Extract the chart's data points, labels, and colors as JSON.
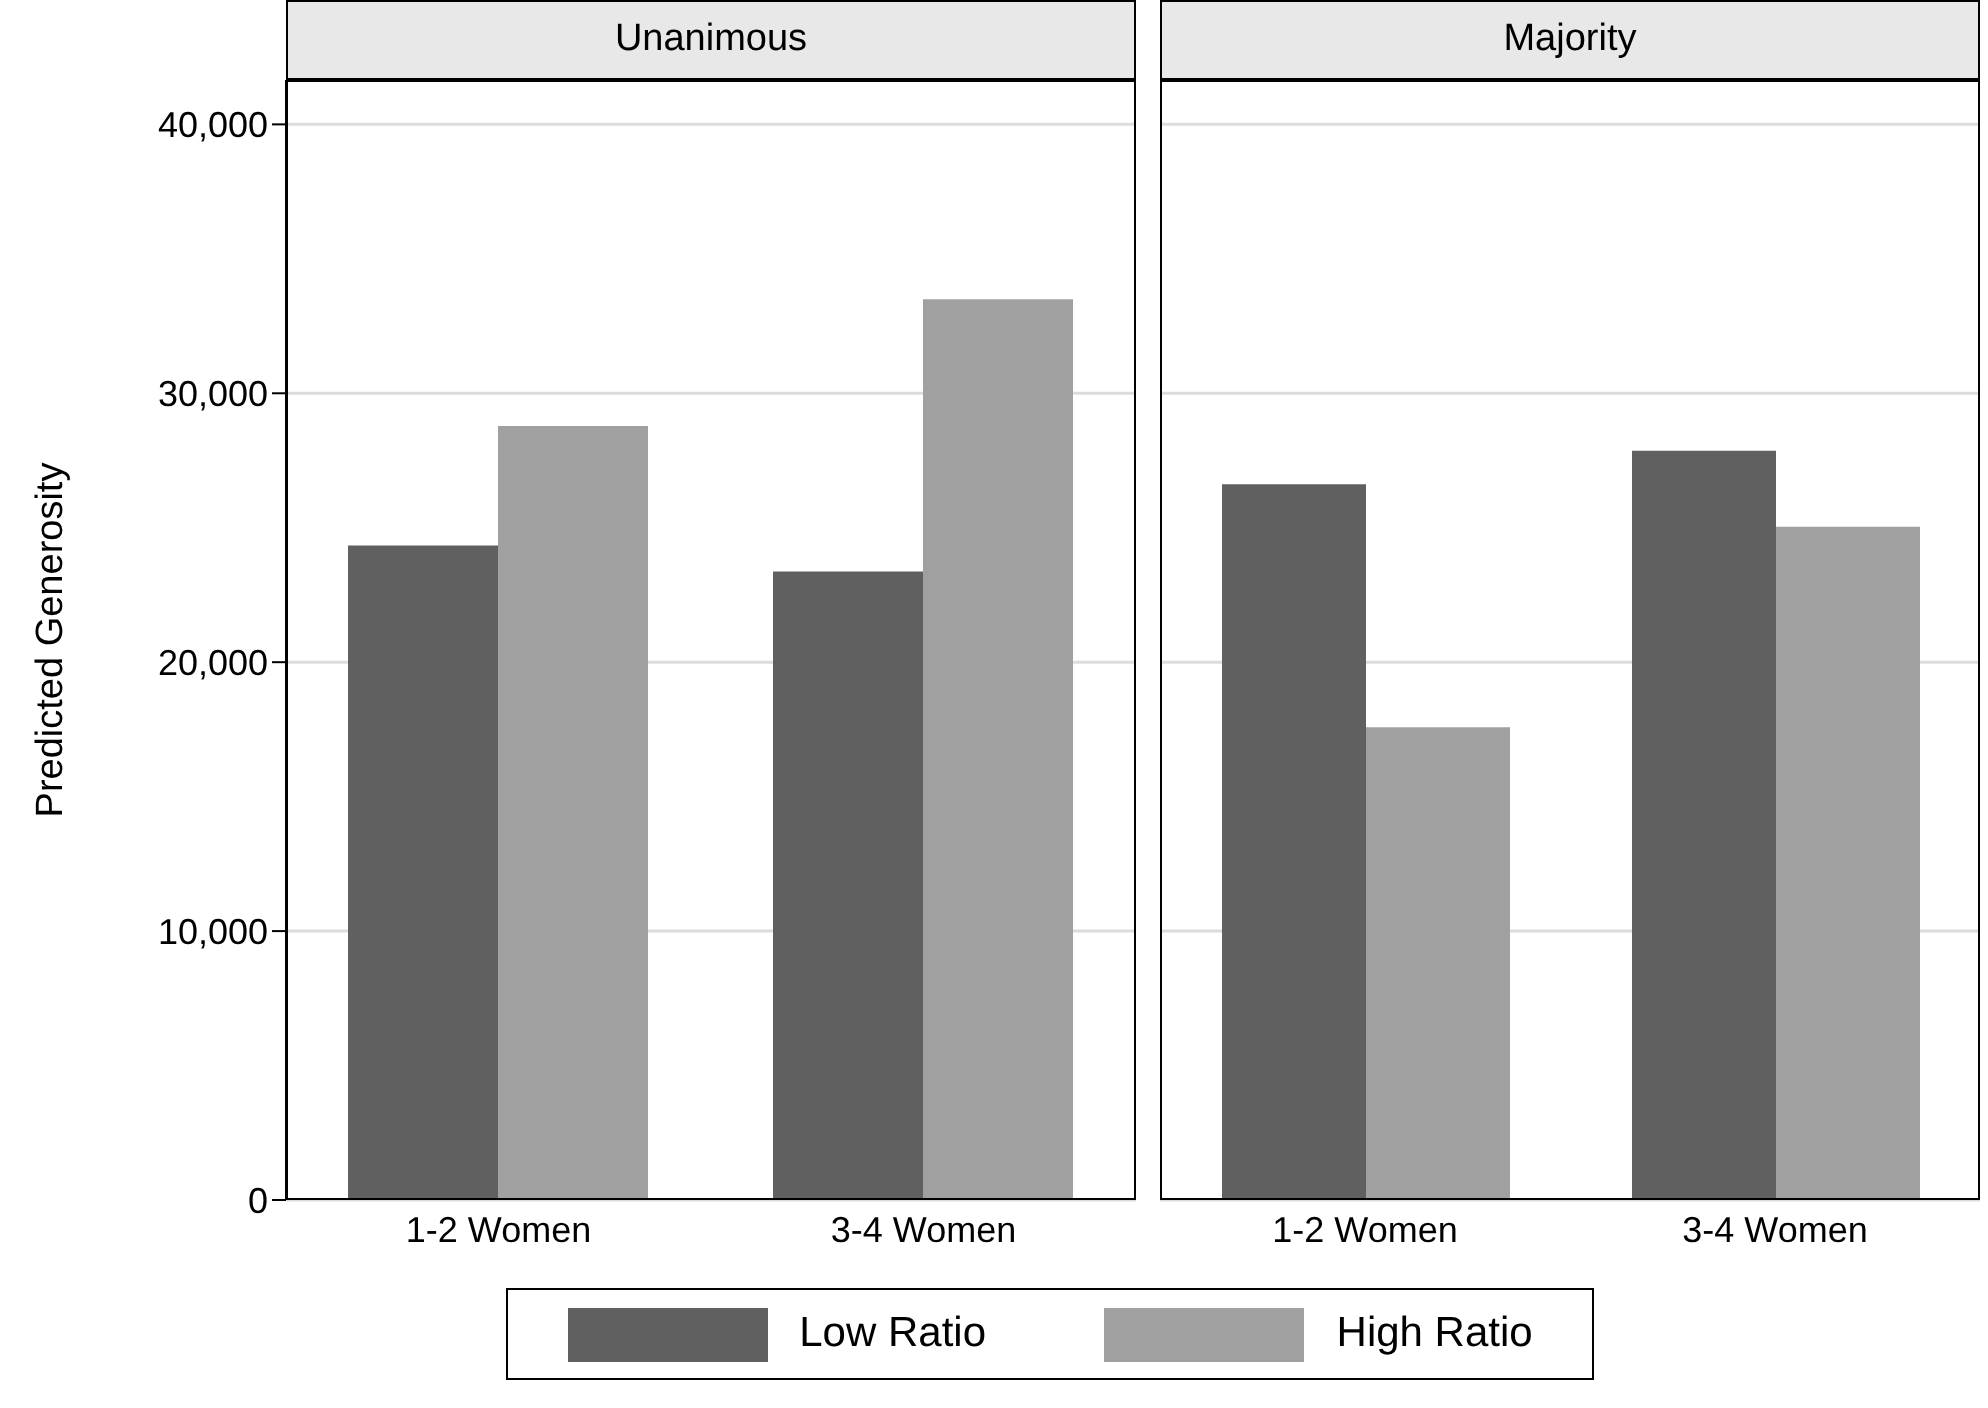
{
  "chart_data": [
    {
      "type": "bar",
      "title": "Unanimous",
      "ylabel": "Predicted Generosity",
      "categories": [
        "1-2 Women",
        "3-4 Women"
      ],
      "series": [
        {
          "name": "Low Ratio",
          "color": "#606060",
          "values": [
            24340,
            23370
          ]
        },
        {
          "name": "High Ratio",
          "color": "#a0a0a0",
          "values": [
            28780,
            33500
          ]
        }
      ],
      "ylim": [
        0,
        41650
      ],
      "yticks": [
        {
          "value": 0,
          "label": "0"
        },
        {
          "value": 10000,
          "label": "10,000"
        },
        {
          "value": 20000,
          "label": "20,000"
        },
        {
          "value": 30000,
          "label": "30,000"
        },
        {
          "value": 40000,
          "label": "40,000"
        }
      ],
      "grid": "y",
      "legend": "bottom"
    },
    {
      "type": "bar",
      "title": "Majority",
      "categories": [
        "1-2 Women",
        "3-4 Women"
      ],
      "series": [
        {
          "color": "#606060",
          "values": [
            26620,
            27860
          ]
        },
        {
          "color": "#a0a0a0",
          "values": [
            17580,
            25040
          ]
        }
      ],
      "ylim": [
        0,
        41650
      ],
      "yticks": [
        0,
        10000,
        20000,
        30000,
        40000
      ],
      "grid": "y",
      "tick_labels": "x"
    }
  ]
}
